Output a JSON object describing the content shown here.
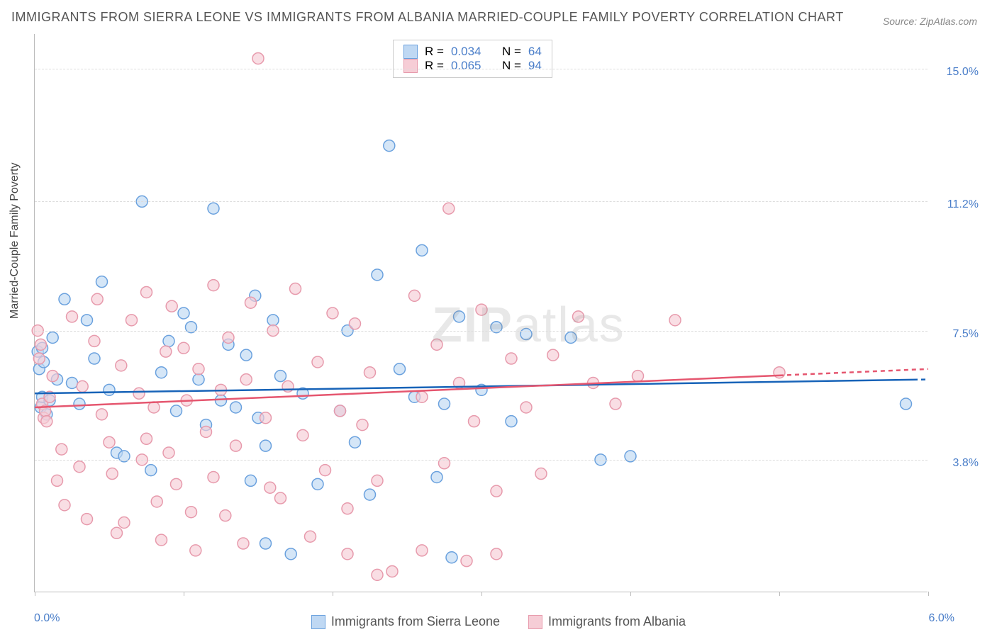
{
  "title": "IMMIGRANTS FROM SIERRA LEONE VS IMMIGRANTS FROM ALBANIA MARRIED-COUPLE FAMILY POVERTY CORRELATION CHART",
  "source": "Source: ZipAtlas.com",
  "ylabel": "Married-Couple Family Poverty",
  "watermark_bold": "ZIP",
  "watermark_rest": "atlas",
  "chart": {
    "type": "scatter",
    "xlim": [
      0.0,
      6.0
    ],
    "ylim": [
      0.0,
      16.0
    ],
    "x_axis_min_label": "0.0%",
    "x_axis_max_label": "6.0%",
    "ytick_labels": [
      {
        "v": 15.0,
        "label": "15.0%"
      },
      {
        "v": 11.2,
        "label": "11.2%"
      },
      {
        "v": 7.5,
        "label": "7.5%"
      },
      {
        "v": 3.8,
        "label": "3.8%"
      }
    ],
    "xtick_positions": [
      0.0,
      1.0,
      2.0,
      3.0,
      4.0,
      5.0,
      6.0
    ],
    "grid_color": "#dddddd",
    "background_color": "#ffffff",
    "marker_radius": 8,
    "marker_stroke_width": 1.5,
    "trend_line_width": 2.5,
    "series": [
      {
        "name": "Immigrants from Sierra Leone",
        "fill_color": "#bfd8f3",
        "stroke_color": "#6aa1de",
        "line_color": "#1763b8",
        "R": "0.034",
        "N": "64",
        "trend": {
          "x0": 0.0,
          "y0": 5.7,
          "x1": 6.0,
          "y1": 6.1,
          "dash_from_x": 5.9
        },
        "points": [
          [
            0.02,
            6.9
          ],
          [
            0.03,
            6.4
          ],
          [
            0.04,
            5.3
          ],
          [
            0.05,
            5.6
          ],
          [
            0.06,
            6.6
          ],
          [
            0.05,
            7.0
          ],
          [
            0.12,
            7.3
          ],
          [
            0.1,
            5.5
          ],
          [
            0.08,
            5.1
          ],
          [
            0.2,
            8.4
          ],
          [
            0.25,
            6.0
          ],
          [
            0.3,
            5.4
          ],
          [
            0.35,
            7.8
          ],
          [
            0.4,
            6.7
          ],
          [
            0.45,
            8.9
          ],
          [
            0.5,
            5.8
          ],
          [
            0.55,
            4.0
          ],
          [
            0.6,
            3.9
          ],
          [
            0.72,
            11.2
          ],
          [
            0.78,
            3.5
          ],
          [
            0.85,
            6.3
          ],
          [
            0.9,
            7.2
          ],
          [
            0.95,
            5.2
          ],
          [
            1.0,
            8.0
          ],
          [
            1.05,
            7.6
          ],
          [
            1.1,
            6.1
          ],
          [
            1.15,
            4.8
          ],
          [
            1.2,
            11.0
          ],
          [
            1.25,
            5.5
          ],
          [
            1.3,
            7.1
          ],
          [
            1.35,
            5.3
          ],
          [
            1.42,
            6.8
          ],
          [
            1.48,
            8.5
          ],
          [
            1.45,
            3.2
          ],
          [
            1.5,
            5.0
          ],
          [
            1.55,
            4.2
          ],
          [
            1.55,
            1.4
          ],
          [
            1.6,
            7.8
          ],
          [
            1.65,
            6.2
          ],
          [
            1.8,
            5.7
          ],
          [
            1.9,
            3.1
          ],
          [
            1.72,
            1.1
          ],
          [
            2.05,
            5.2
          ],
          [
            2.1,
            7.5
          ],
          [
            2.15,
            4.3
          ],
          [
            2.25,
            2.8
          ],
          [
            2.3,
            9.1
          ],
          [
            2.38,
            12.8
          ],
          [
            2.45,
            6.4
          ],
          [
            2.55,
            5.6
          ],
          [
            2.6,
            9.8
          ],
          [
            2.7,
            3.3
          ],
          [
            2.75,
            5.4
          ],
          [
            2.8,
            1.0
          ],
          [
            2.85,
            7.9
          ],
          [
            3.0,
            5.8
          ],
          [
            3.1,
            7.6
          ],
          [
            3.2,
            4.9
          ],
          [
            3.3,
            7.4
          ],
          [
            3.6,
            7.3
          ],
          [
            3.8,
            3.8
          ],
          [
            4.0,
            3.9
          ],
          [
            5.85,
            5.4
          ],
          [
            0.15,
            6.1
          ]
        ]
      },
      {
        "name": "Immigrants from Albania",
        "fill_color": "#f6cdd6",
        "stroke_color": "#e79aac",
        "line_color": "#e5566f",
        "R": "0.065",
        "N": "94",
        "trend": {
          "x0": 0.0,
          "y0": 5.3,
          "x1": 6.0,
          "y1": 6.4,
          "dash_from_x": 5.0
        },
        "points": [
          [
            0.02,
            7.5
          ],
          [
            0.03,
            6.7
          ],
          [
            0.05,
            5.4
          ],
          [
            0.06,
            5.0
          ],
          [
            0.07,
            5.2
          ],
          [
            0.08,
            4.9
          ],
          [
            0.1,
            5.6
          ],
          [
            0.12,
            6.2
          ],
          [
            0.15,
            3.2
          ],
          [
            0.18,
            4.1
          ],
          [
            0.2,
            2.5
          ],
          [
            0.25,
            7.9
          ],
          [
            0.3,
            3.6
          ],
          [
            0.32,
            5.9
          ],
          [
            0.35,
            2.1
          ],
          [
            0.4,
            7.2
          ],
          [
            0.42,
            8.4
          ],
          [
            0.45,
            5.1
          ],
          [
            0.5,
            4.3
          ],
          [
            0.52,
            3.4
          ],
          [
            0.55,
            1.7
          ],
          [
            0.58,
            6.5
          ],
          [
            0.6,
            2.0
          ],
          [
            0.65,
            7.8
          ],
          [
            0.7,
            5.7
          ],
          [
            0.72,
            3.8
          ],
          [
            0.75,
            8.6
          ],
          [
            0.75,
            4.4
          ],
          [
            0.8,
            5.3
          ],
          [
            0.82,
            2.6
          ],
          [
            0.85,
            1.5
          ],
          [
            0.88,
            6.9
          ],
          [
            0.9,
            4.0
          ],
          [
            0.92,
            8.2
          ],
          [
            0.95,
            3.1
          ],
          [
            1.0,
            7.0
          ],
          [
            1.02,
            5.5
          ],
          [
            1.05,
            2.3
          ],
          [
            1.08,
            1.2
          ],
          [
            1.1,
            6.4
          ],
          [
            1.15,
            4.6
          ],
          [
            1.2,
            8.8
          ],
          [
            1.2,
            3.3
          ],
          [
            1.25,
            5.8
          ],
          [
            1.28,
            2.2
          ],
          [
            1.3,
            7.3
          ],
          [
            1.35,
            4.2
          ],
          [
            1.4,
            1.4
          ],
          [
            1.42,
            6.1
          ],
          [
            1.45,
            8.3
          ],
          [
            1.5,
            15.3
          ],
          [
            1.55,
            5.0
          ],
          [
            1.58,
            3.0
          ],
          [
            1.6,
            7.5
          ],
          [
            1.65,
            2.7
          ],
          [
            1.7,
            5.9
          ],
          [
            1.75,
            8.7
          ],
          [
            1.8,
            4.5
          ],
          [
            1.85,
            1.6
          ],
          [
            1.9,
            6.6
          ],
          [
            1.95,
            3.5
          ],
          [
            2.0,
            8.0
          ],
          [
            2.05,
            5.2
          ],
          [
            2.1,
            2.4
          ],
          [
            2.1,
            1.1
          ],
          [
            2.15,
            7.7
          ],
          [
            2.2,
            4.8
          ],
          [
            2.25,
            6.3
          ],
          [
            2.3,
            3.2
          ],
          [
            2.4,
            0.6
          ],
          [
            2.3,
            0.5
          ],
          [
            2.55,
            8.5
          ],
          [
            2.6,
            5.6
          ],
          [
            2.6,
            1.2
          ],
          [
            2.7,
            7.1
          ],
          [
            2.75,
            3.7
          ],
          [
            2.78,
            11.0
          ],
          [
            2.85,
            6.0
          ],
          [
            2.9,
            0.9
          ],
          [
            2.95,
            4.9
          ],
          [
            3.0,
            8.1
          ],
          [
            3.1,
            2.9
          ],
          [
            3.1,
            1.1
          ],
          [
            3.2,
            6.7
          ],
          [
            3.3,
            5.3
          ],
          [
            3.4,
            3.4
          ],
          [
            3.48,
            6.8
          ],
          [
            3.65,
            7.9
          ],
          [
            3.75,
            6.0
          ],
          [
            3.9,
            5.4
          ],
          [
            4.05,
            6.2
          ],
          [
            4.3,
            7.8
          ],
          [
            5.0,
            6.3
          ],
          [
            0.04,
            7.1
          ]
        ]
      }
    ]
  },
  "legend_top_labels": {
    "R": "R =",
    "N": "N ="
  },
  "bottom_legend": [
    {
      "label": "Immigrants from Sierra Leone",
      "fill": "#bfd8f3",
      "stroke": "#6aa1de"
    },
    {
      "label": "Immigrants from Albania",
      "fill": "#f6cdd6",
      "stroke": "#e79aac"
    }
  ]
}
